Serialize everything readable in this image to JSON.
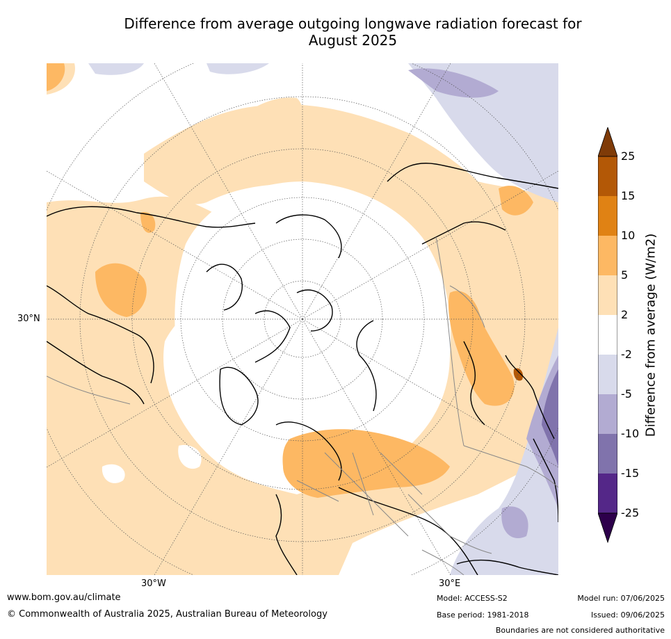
{
  "title_line1": "Difference from average outgoing longwave radiation forecast for",
  "title_line2": "August 2025",
  "map": {
    "lat_label": "30°N",
    "lon_labels": [
      "30°W",
      "30°E"
    ]
  },
  "colorbar": {
    "label": "Difference from average (W/m2)",
    "ticks": [
      "25",
      "15",
      "10",
      "5",
      "2",
      "-2",
      "-5",
      "-10",
      "-15",
      "-25"
    ],
    "colors": {
      "over": "#7f3b08",
      "b15_25": "#b35806",
      "b10_15": "#e08214",
      "b5_10": "#fdb863",
      "b2_5": "#fee0b6",
      "neutral": "#ffffff",
      "bm5_m2": "#d8daeb",
      "bm10_m5": "#b2abd2",
      "bm15_m10": "#8073ac",
      "bm25_m15": "#542788",
      "under": "#2d004b"
    }
  },
  "footer": {
    "website": "www.bom.gov.au/climate",
    "copyright": "© Commonwealth of Australia 2025, Australian Bureau of Meteorology",
    "model": "Model: ACCESS-S2",
    "base_period": "Base period: 1981-2018",
    "model_run": "Model run: 07/06/2025",
    "issued": "Issued: 09/06/2025",
    "disclaimer": "Boundaries are not considered authoritative"
  }
}
